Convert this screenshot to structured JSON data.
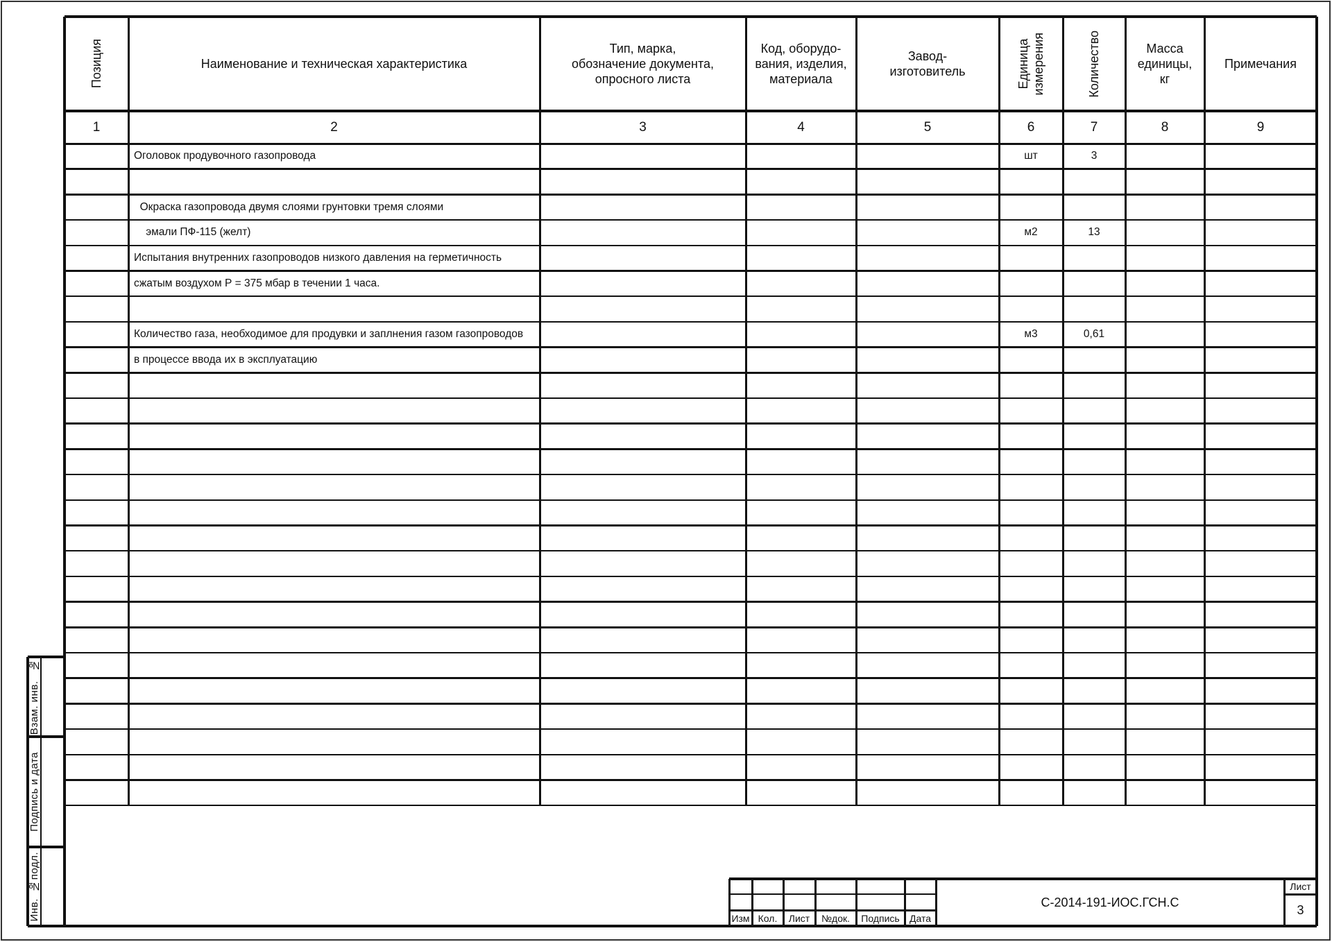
{
  "columns": [
    {
      "header": "Позиция",
      "number": "1",
      "vertical": true
    },
    {
      "header": "Наименование и техническая характеристика",
      "number": "2"
    },
    {
      "header": "Тип, марка,\nобозначение документа,\nопросного листа",
      "number": "3"
    },
    {
      "header": "Код, оборудо-\nвания, изделия,\nматериала",
      "number": "4"
    },
    {
      "header": "Завод-\nизготовитель",
      "number": "5"
    },
    {
      "header": "Единица\nизмерения",
      "number": "6",
      "vertical": true
    },
    {
      "header": "Количество",
      "number": "7",
      "vertical": true
    },
    {
      "header": "Масса\nединицы,\nкг",
      "number": "8"
    },
    {
      "header": "Примечания",
      "number": "9"
    }
  ],
  "rows": [
    {
      "name": "Оголовок продувочного газопровода",
      "unit": "шт",
      "qty": "3"
    },
    {
      "name": "",
      "unit": "",
      "qty": ""
    },
    {
      "name": "  Окраска газопровода двумя слоями грунтовки тремя слоями",
      "unit": "",
      "qty": ""
    },
    {
      "name": "    эмали ПФ-115 (желт)",
      "unit": "м2",
      "qty": "13"
    },
    {
      "name": "Испытания внутренних газопроводов низкого давления на герметичность",
      "unit": "",
      "qty": ""
    },
    {
      "name": "сжатым воздухом Р = 375 мбар в течении 1 часа.",
      "unit": "",
      "qty": ""
    },
    {
      "name": "",
      "unit": "",
      "qty": ""
    },
    {
      "name": "Количество газа, необходимое для продувки и заплнения газом газопроводов",
      "unit": "м3",
      "qty": "0,61"
    },
    {
      "name": "в процессе ввода их в эксплуатацию",
      "unit": "",
      "qty": ""
    },
    {
      "name": "",
      "unit": "",
      "qty": ""
    },
    {
      "name": "",
      "unit": "",
      "qty": ""
    },
    {
      "name": "",
      "unit": "",
      "qty": ""
    },
    {
      "name": "",
      "unit": "",
      "qty": ""
    },
    {
      "name": "",
      "unit": "",
      "qty": ""
    },
    {
      "name": "",
      "unit": "",
      "qty": ""
    },
    {
      "name": "",
      "unit": "",
      "qty": ""
    },
    {
      "name": "",
      "unit": "",
      "qty": ""
    },
    {
      "name": "",
      "unit": "",
      "qty": ""
    },
    {
      "name": "",
      "unit": "",
      "qty": ""
    },
    {
      "name": "",
      "unit": "",
      "qty": ""
    },
    {
      "name": "",
      "unit": "",
      "qty": ""
    },
    {
      "name": "",
      "unit": "",
      "qty": ""
    },
    {
      "name": "",
      "unit": "",
      "qty": ""
    },
    {
      "name": "",
      "unit": "",
      "qty": ""
    },
    {
      "name": "",
      "unit": "",
      "qty": ""
    },
    {
      "name": "",
      "unit": "",
      "qty": ""
    }
  ],
  "side_stamp": {
    "replace_inv": "Взам. инв.   №",
    "signature_date": "Подпись и дата",
    "inv_original": "Инв.  №подл."
  },
  "title_block": {
    "labels": [
      "Изм",
      "Кол.",
      "Лист",
      "№док.",
      "Подпись",
      "Дата"
    ],
    "document_code": "С-2014-191-ИОС.ГСН.С",
    "sheet_label": "Лист",
    "sheet_number": "3"
  }
}
